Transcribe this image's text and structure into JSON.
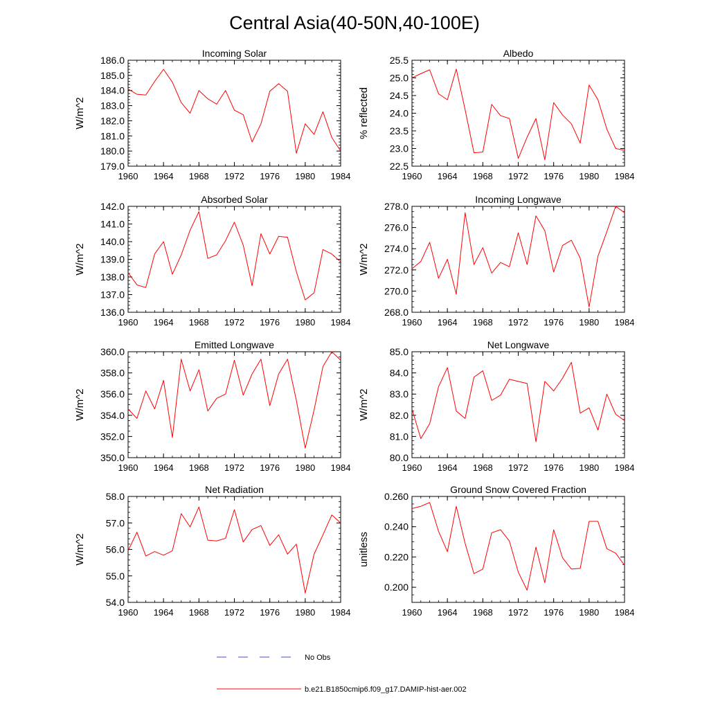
{
  "title": "Central Asia(40-50N,40-100E)",
  "legend": [
    {
      "label": "No Obs",
      "color": "#3b4fd6",
      "dash": true
    },
    {
      "label": "b.e21.B1850cmip6.f09_g17.DAMIP-hist-aer.002",
      "color": "#ff0000",
      "dash": false
    }
  ],
  "chart_data": [
    {
      "type": "line",
      "title": "Incoming Solar",
      "ylabel": "W/m^2",
      "xlim": [
        1960,
        1984
      ],
      "ylim": [
        179.0,
        186.0
      ],
      "xticks": [
        1960,
        1964,
        1968,
        1972,
        1976,
        1980,
        1984
      ],
      "yticks": [
        179.0,
        180.0,
        181.0,
        182.0,
        183.0,
        184.0,
        185.0,
        186.0
      ],
      "ydecimals": 1,
      "yminor": 0.2,
      "x": [
        1960,
        1961,
        1962,
        1963,
        1964,
        1965,
        1966,
        1967,
        1968,
        1969,
        1970,
        1971,
        1972,
        1973,
        1974,
        1975,
        1976,
        1977,
        1978,
        1979,
        1980,
        1981,
        1982,
        1983,
        1984
      ],
      "series": [
        {
          "color": "#ff0000",
          "values": [
            184.1,
            183.75,
            183.7,
            184.6,
            185.4,
            184.55,
            183.2,
            182.5,
            184.0,
            183.45,
            183.1,
            184.0,
            182.7,
            182.4,
            180.6,
            181.8,
            183.95,
            184.45,
            183.95,
            179.85,
            181.8,
            181.1,
            182.6,
            180.9,
            180.0
          ]
        }
      ]
    },
    {
      "type": "line",
      "title": "Albedo",
      "ylabel": "% reflected",
      "xlim": [
        1960,
        1984
      ],
      "ylim": [
        22.5,
        25.5
      ],
      "xticks": [
        1960,
        1964,
        1968,
        1972,
        1976,
        1980,
        1984
      ],
      "yticks": [
        22.5,
        23.0,
        23.5,
        24.0,
        24.5,
        25.0,
        25.5
      ],
      "ydecimals": 1,
      "yminor": 0.1,
      "x": [
        1960,
        1961,
        1962,
        1963,
        1964,
        1965,
        1966,
        1967,
        1968,
        1969,
        1970,
        1971,
        1972,
        1973,
        1974,
        1975,
        1976,
        1977,
        1978,
        1979,
        1980,
        1981,
        1982,
        1983,
        1984
      ],
      "series": [
        {
          "color": "#ff0000",
          "values": [
            25.0,
            25.12,
            25.23,
            24.55,
            24.38,
            25.25,
            24.1,
            22.88,
            22.9,
            24.25,
            23.93,
            23.85,
            22.72,
            23.32,
            23.85,
            22.68,
            24.3,
            23.95,
            23.7,
            23.15,
            24.8,
            24.38,
            23.55,
            23.0,
            22.95
          ]
        }
      ]
    },
    {
      "type": "line",
      "title": "Absorbed Solar",
      "ylabel": "W/m^2",
      "xlim": [
        1960,
        1984
      ],
      "ylim": [
        136.0,
        142.0
      ],
      "xticks": [
        1960,
        1964,
        1968,
        1972,
        1976,
        1980,
        1984
      ],
      "yticks": [
        136.0,
        137.0,
        138.0,
        139.0,
        140.0,
        141.0,
        142.0
      ],
      "ydecimals": 1,
      "yminor": 0.2,
      "x": [
        1960,
        1961,
        1962,
        1963,
        1964,
        1965,
        1966,
        1967,
        1968,
        1969,
        1970,
        1971,
        1972,
        1973,
        1974,
        1975,
        1976,
        1977,
        1978,
        1979,
        1980,
        1981,
        1982,
        1983,
        1984
      ],
      "series": [
        {
          "color": "#ff0000",
          "values": [
            138.25,
            137.55,
            137.4,
            139.3,
            140.0,
            138.15,
            139.25,
            140.65,
            141.7,
            139.05,
            139.25,
            140.05,
            141.1,
            139.8,
            137.5,
            140.45,
            139.3,
            140.3,
            140.25,
            138.3,
            136.7,
            137.1,
            139.55,
            139.3,
            138.85
          ]
        }
      ]
    },
    {
      "type": "line",
      "title": "Incoming Longwave",
      "ylabel": "W/m^2",
      "xlim": [
        1960,
        1984
      ],
      "ylim": [
        268.0,
        278.0
      ],
      "xticks": [
        1960,
        1964,
        1968,
        1972,
        1976,
        1980,
        1984
      ],
      "yticks": [
        268.0,
        270.0,
        272.0,
        274.0,
        276.0,
        278.0
      ],
      "ydecimals": 1,
      "yminor": 0.5,
      "x": [
        1960,
        1961,
        1962,
        1963,
        1964,
        1965,
        1966,
        1967,
        1968,
        1969,
        1970,
        1971,
        1972,
        1973,
        1974,
        1975,
        1976,
        1977,
        1978,
        1979,
        1980,
        1981,
        1982,
        1983,
        1984
      ],
      "series": [
        {
          "color": "#ff0000",
          "values": [
            272.1,
            272.8,
            274.6,
            271.2,
            273.0,
            269.7,
            277.4,
            272.5,
            274.1,
            271.7,
            272.7,
            272.3,
            275.5,
            272.5,
            277.1,
            275.7,
            271.8,
            274.3,
            274.8,
            273.1,
            268.5,
            273.3,
            275.6,
            278.0,
            277.4
          ]
        }
      ]
    },
    {
      "type": "line",
      "title": "Emitted Longwave",
      "ylabel": "W/m^2",
      "xlim": [
        1960,
        1984
      ],
      "ylim": [
        350.0,
        360.0
      ],
      "xticks": [
        1960,
        1964,
        1968,
        1972,
        1976,
        1980,
        1984
      ],
      "yticks": [
        350.0,
        352.0,
        354.0,
        356.0,
        358.0,
        360.0
      ],
      "ydecimals": 1,
      "yminor": 0.5,
      "x": [
        1960,
        1961,
        1962,
        1963,
        1964,
        1965,
        1966,
        1967,
        1968,
        1969,
        1970,
        1971,
        1972,
        1973,
        1974,
        1975,
        1976,
        1977,
        1978,
        1979,
        1980,
        1981,
        1982,
        1983,
        1984
      ],
      "series": [
        {
          "color": "#ff0000",
          "values": [
            354.6,
            353.7,
            356.3,
            354.6,
            357.3,
            351.9,
            359.3,
            356.3,
            358.3,
            354.4,
            355.6,
            356.0,
            359.2,
            355.9,
            357.9,
            359.3,
            354.9,
            357.9,
            359.3,
            355.4,
            350.9,
            354.5,
            358.6,
            360.0,
            359.2
          ]
        }
      ]
    },
    {
      "type": "line",
      "title": "Net Longwave",
      "ylabel": "W/m^2",
      "xlim": [
        1960,
        1984
      ],
      "ylim": [
        80.0,
        85.0
      ],
      "xticks": [
        1960,
        1964,
        1968,
        1972,
        1976,
        1980,
        1984
      ],
      "yticks": [
        80.0,
        81.0,
        82.0,
        83.0,
        84.0,
        85.0
      ],
      "ydecimals": 1,
      "yminor": 0.2,
      "x": [
        1960,
        1961,
        1962,
        1963,
        1964,
        1965,
        1966,
        1967,
        1968,
        1969,
        1970,
        1971,
        1972,
        1973,
        1974,
        1975,
        1976,
        1977,
        1978,
        1979,
        1980,
        1981,
        1982,
        1983,
        1984
      ],
      "series": [
        {
          "color": "#ff0000",
          "values": [
            82.3,
            80.9,
            81.6,
            83.35,
            84.25,
            82.2,
            81.85,
            83.8,
            84.1,
            82.7,
            82.95,
            83.7,
            83.6,
            83.5,
            80.75,
            83.6,
            83.15,
            83.75,
            84.5,
            82.1,
            82.35,
            81.3,
            83.0,
            82.05,
            81.75
          ]
        }
      ]
    },
    {
      "type": "line",
      "title": "Net Radiation",
      "ylabel": "W/m^2",
      "xlim": [
        1960,
        1984
      ],
      "ylim": [
        54.0,
        58.0
      ],
      "xticks": [
        1960,
        1964,
        1968,
        1972,
        1976,
        1980,
        1984
      ],
      "yticks": [
        54.0,
        55.0,
        56.0,
        57.0,
        58.0
      ],
      "ydecimals": 1,
      "yminor": 0.2,
      "x": [
        1960,
        1961,
        1962,
        1963,
        1964,
        1965,
        1966,
        1967,
        1968,
        1969,
        1970,
        1971,
        1972,
        1973,
        1974,
        1975,
        1976,
        1977,
        1978,
        1979,
        1980,
        1981,
        1982,
        1983,
        1984
      ],
      "series": [
        {
          "color": "#ff0000",
          "values": [
            55.95,
            56.65,
            55.75,
            55.92,
            55.78,
            55.95,
            57.35,
            56.85,
            57.6,
            56.35,
            56.32,
            56.42,
            57.5,
            56.28,
            56.75,
            56.9,
            56.15,
            56.55,
            55.82,
            56.2,
            54.35,
            55.82,
            56.55,
            57.3,
            57.0
          ]
        }
      ]
    },
    {
      "type": "line",
      "title": "Ground Snow Covered Fraction",
      "ylabel": "unitless",
      "xlim": [
        1960,
        1984
      ],
      "ylim": [
        0.19,
        0.26
      ],
      "xticks": [
        1960,
        1964,
        1968,
        1972,
        1976,
        1980,
        1984
      ],
      "yticks": [
        0.2,
        0.22,
        0.24,
        0.26
      ],
      "ydecimals": 3,
      "yminor": 0.005,
      "x": [
        1960,
        1961,
        1962,
        1963,
        1964,
        1965,
        1966,
        1967,
        1968,
        1969,
        1970,
        1971,
        1972,
        1973,
        1974,
        1975,
        1976,
        1977,
        1978,
        1979,
        1980,
        1981,
        1982,
        1983,
        1984
      ],
      "series": [
        {
          "color": "#ff0000",
          "values": [
            0.252,
            0.2535,
            0.256,
            0.237,
            0.2235,
            0.2535,
            0.229,
            0.209,
            0.212,
            0.236,
            0.238,
            0.2305,
            0.21,
            0.198,
            0.2265,
            0.203,
            0.238,
            0.2195,
            0.212,
            0.2125,
            0.2435,
            0.2435,
            0.2255,
            0.2225,
            0.2145
          ]
        }
      ]
    }
  ]
}
